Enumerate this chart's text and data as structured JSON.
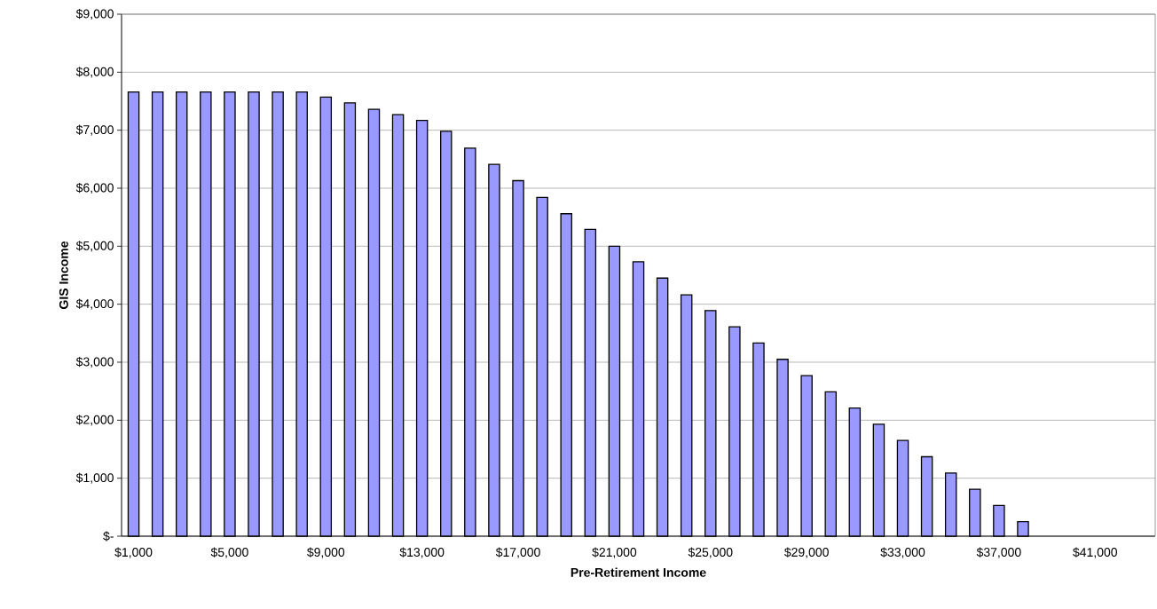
{
  "chart_data": {
    "type": "bar",
    "xlabel": "Pre-Retirement Income",
    "ylabel": "GIS Income",
    "categories": [
      "$1,000",
      null,
      null,
      null,
      "$5,000",
      null,
      null,
      null,
      "$9,000",
      null,
      null,
      null,
      "$13,000",
      null,
      null,
      null,
      "$17,000",
      null,
      null,
      null,
      "$21,000",
      null,
      null,
      null,
      "$25,000",
      null,
      null,
      null,
      "$29,000",
      null,
      null,
      null,
      "$33,000",
      null,
      null,
      null,
      "$37,000",
      null,
      null,
      null,
      "$41,000",
      null,
      null
    ],
    "values": [
      7660,
      7660,
      7660,
      7660,
      7660,
      7660,
      7660,
      7660,
      7570,
      7470,
      7360,
      7270,
      7170,
      6980,
      6690,
      6410,
      6130,
      5840,
      5560,
      5290,
      5000,
      4730,
      4450,
      4160,
      3890,
      3610,
      3330,
      3050,
      2770,
      2490,
      2210,
      1930,
      1650,
      1370,
      1090,
      810,
      530,
      250,
      0,
      0,
      0,
      0,
      0
    ],
    "color": "#9999ff",
    "ylim": [
      0,
      9000
    ],
    "yticks": [
      {
        "value": 0,
        "label": "$-"
      },
      {
        "value": 1000,
        "label": "$1,000"
      },
      {
        "value": 2000,
        "label": "$2,000"
      },
      {
        "value": 3000,
        "label": "$3,000"
      },
      {
        "value": 4000,
        "label": "$4,000"
      },
      {
        "value": 5000,
        "label": "$5,000"
      },
      {
        "value": 6000,
        "label": "$6,000"
      },
      {
        "value": 7000,
        "label": "$7,000"
      },
      {
        "value": 8000,
        "label": "$8,000"
      },
      {
        "value": 9000,
        "label": "$9,000"
      }
    ],
    "grid": "y"
  }
}
